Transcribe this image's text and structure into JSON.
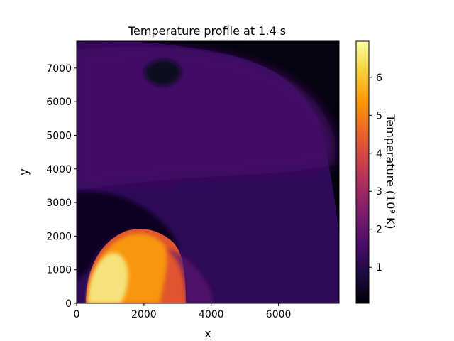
{
  "chart_data": {
    "type": "heatmap",
    "title": "Temperature profile at 1.4 s",
    "xlabel": "x",
    "ylabel": "y",
    "xlim": [
      0,
      7800
    ],
    "ylim": [
      0,
      7800
    ],
    "xticks": [
      0,
      2000,
      4000,
      6000
    ],
    "yticks": [
      0,
      1000,
      2000,
      3000,
      4000,
      5000,
      6000,
      7000
    ],
    "colorbar": {
      "label": "Temperature (10⁹ K)",
      "range": [
        0.05,
        6.95
      ],
      "ticks": [
        1,
        2,
        3,
        4,
        5,
        6
      ],
      "colormap": "inferno"
    },
    "field_regions": [
      {
        "region": "background",
        "temperature": 1.6
      },
      {
        "region": "outer shell (y 4000-7700)",
        "temperature": 1.5
      },
      {
        "region": "cold cavity above hot lobe",
        "temperature": 0.3
      },
      {
        "region": "hot lobe core near origin",
        "temperature": 6.5
      },
      {
        "region": "hot lobe outer edge",
        "temperature": 5.2
      },
      {
        "region": "exterior near x=7800",
        "temperature": 0.1
      }
    ]
  },
  "colors": {
    "cmap_stops": [
      "#000004",
      "#1b0c41",
      "#4a0c6b",
      "#781c6d",
      "#a52c60",
      "#cf4446",
      "#ed6925",
      "#fb9b06",
      "#f7d13d",
      "#fcffa4"
    ]
  }
}
